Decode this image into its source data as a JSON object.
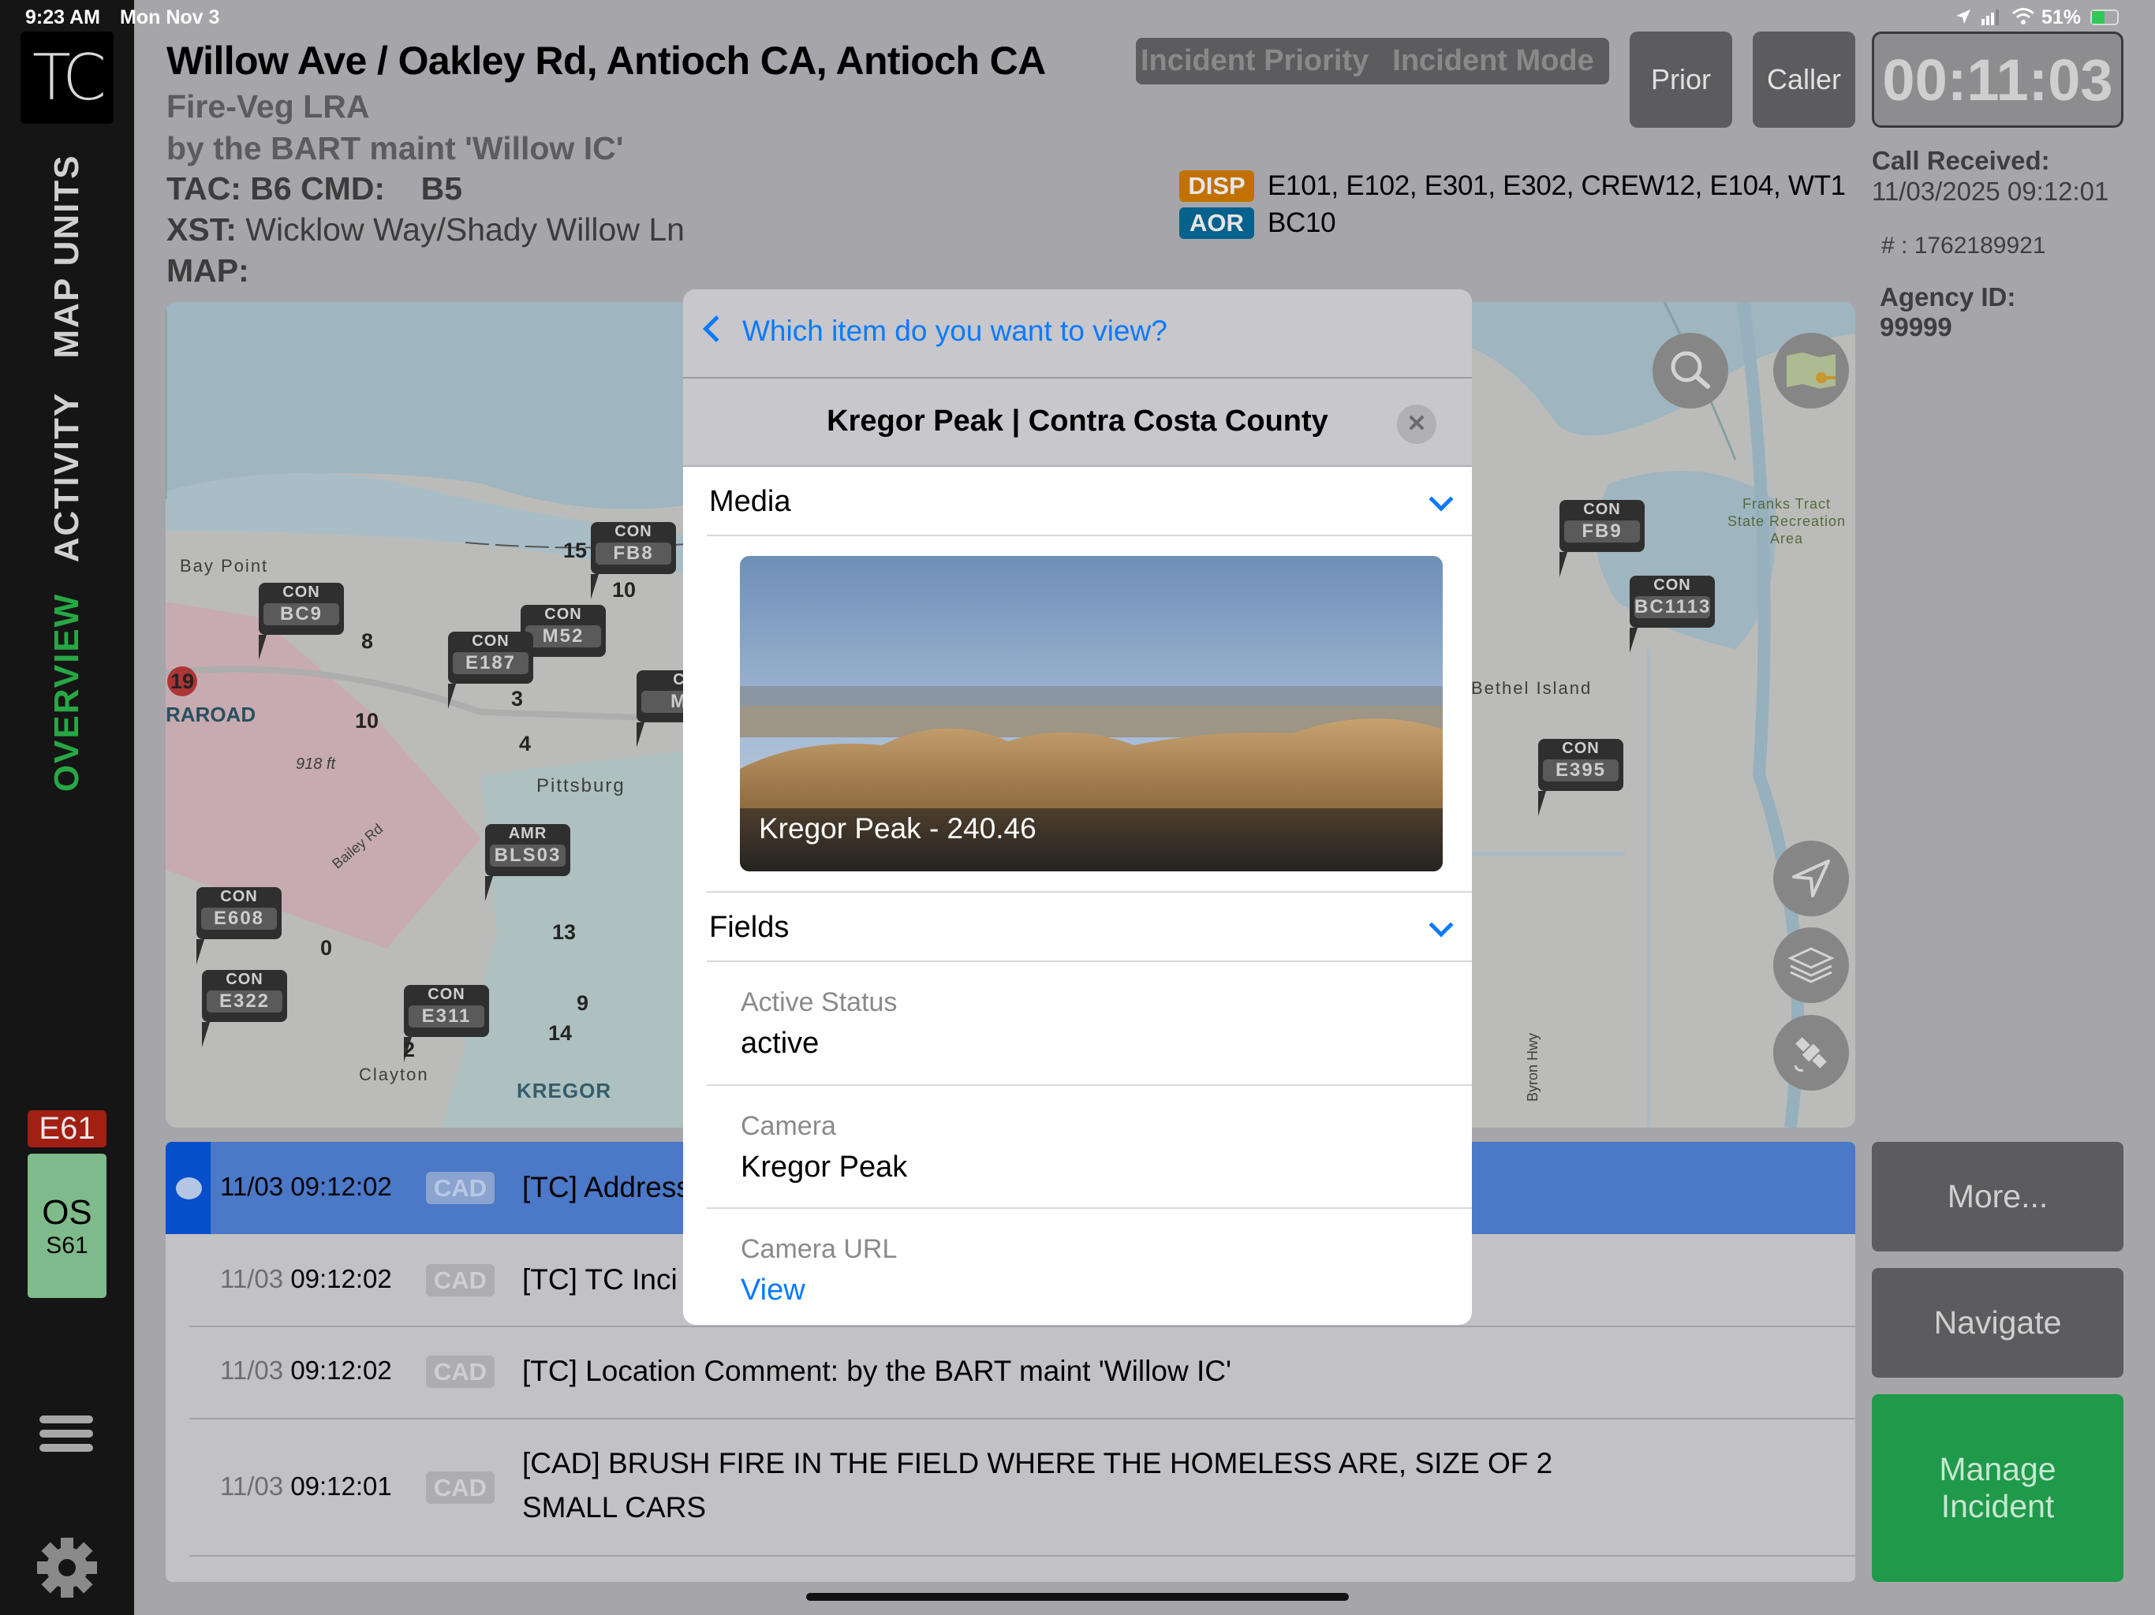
{
  "status_bar": {
    "time": "9:23 AM",
    "date": "Mon Nov 3",
    "battery": "51%"
  },
  "sidebar": {
    "logo": "TC",
    "tabs": [
      {
        "label": "MAP UNITS"
      },
      {
        "label": "ACTIVITY"
      },
      {
        "label": "OVERVIEW",
        "active": true
      }
    ],
    "unit_badge": "E61",
    "unit_status": {
      "code": "OS",
      "unit": "S61"
    },
    "accent_active": "#27a845"
  },
  "header": {
    "title": "Willow Ave / Oakley Rd, Antioch CA, Antioch CA",
    "type": "Fire-Veg LRA",
    "location_comment": "by the BART maint 'Willow IC'",
    "tac_cmd": "TAC: B6 CMD:    B5",
    "xst_label": "XST:",
    "xst_value": "Wicklow Way/Shady Willow Ln",
    "map_label": "MAP:",
    "incident_priority": "Incident Priority",
    "incident_mode": "Incident Mode",
    "prior_button": "Prior",
    "caller_button": "Caller",
    "timer": "00:11:03",
    "disp_badge": "DISP",
    "disp_units": "E101, E102, E301, E302, CREW12, E104, WT1",
    "aor_badge": "AOR",
    "aor_value": "BC10",
    "call_received_label": "Call Received:",
    "call_received_value": "11/03/2025 09:12:01",
    "incident_number": "# : 1762189921",
    "agency_id_label": "Agency ID:",
    "agency_id_value": "99999"
  },
  "map": {
    "markers": [
      {
        "agency": "CON",
        "unit": "BC9"
      },
      {
        "agency": "CON",
        "unit": "FB8"
      },
      {
        "agency": "CON",
        "unit": "M52"
      },
      {
        "agency": "CON",
        "unit": "E187"
      },
      {
        "agency": "C",
        "unit": "M"
      },
      {
        "agency": "AMR",
        "unit": "BLS03"
      },
      {
        "agency": "CON",
        "unit": "E608"
      },
      {
        "agency": "CON",
        "unit": "E322"
      },
      {
        "agency": "CON",
        "unit": "E311"
      },
      {
        "agency": "CON",
        "unit": "FB9"
      },
      {
        "agency": "CON",
        "unit": "BC1113"
      },
      {
        "agency": "CON",
        "unit": "E395"
      }
    ],
    "numbers": [
      "15",
      "10",
      "8",
      "10",
      "3",
      "4",
      "19",
      "0",
      "13",
      "9",
      "14",
      "2"
    ],
    "places": [
      "Bay Point",
      "Pittsburg",
      "RAROAD",
      "918 ft",
      "Clayton",
      "KREGOR",
      "Bailey Rd",
      "Bethel Island",
      "Franks Tract State Recreation Area",
      "Byron Hwy"
    ]
  },
  "activity": [
    {
      "date": "11/03",
      "time": "09:12:02",
      "source": "CAD",
      "message": "[TC] Address",
      "selected": true
    },
    {
      "date": "11/03",
      "time": "09:12:02",
      "source": "CAD",
      "message": "[TC] TC Inci"
    },
    {
      "date": "11/03",
      "time": "09:12:02",
      "source": "CAD",
      "message": "[TC] Location Comment: by the BART maint 'Willow IC'"
    },
    {
      "date": "11/03",
      "time": "09:12:01",
      "source": "CAD",
      "message": "[CAD] BRUSH FIRE IN THE FIELD WHERE THE HOMELESS ARE, SIZE OF 2 SMALL CARS"
    }
  ],
  "actions": {
    "more": "More...",
    "navigate": "Navigate",
    "manage": "Manage Incident",
    "manage_color": "#1f9a4a"
  },
  "modal": {
    "back_label": "Which item do you want to view?",
    "title": "Kregor Peak | Contra Costa County",
    "media_section": "Media",
    "photo_caption": "Kregor Peak - 240.46",
    "fields_section": "Fields",
    "fields": [
      {
        "label": "Active Status",
        "value": "active"
      },
      {
        "label": "Camera",
        "value": "Kregor Peak"
      },
      {
        "label": "Camera URL",
        "value": "View",
        "link": true
      }
    ]
  }
}
